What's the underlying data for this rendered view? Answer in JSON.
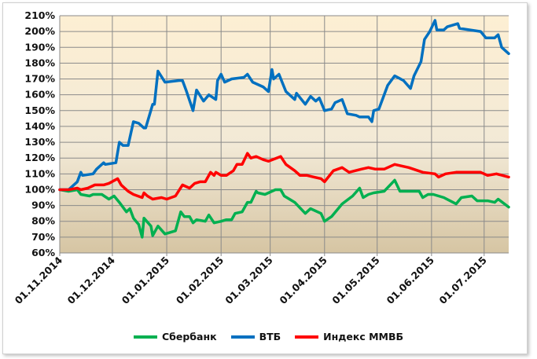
{
  "chart_data": {
    "type": "line",
    "title": "",
    "xlabel": "",
    "ylabel": "",
    "x_unit": "days since 01.11.2014",
    "xlim": [
      0,
      256
    ],
    "ylim": [
      60,
      210
    ],
    "y_ticks": [
      60,
      70,
      80,
      90,
      100,
      110,
      120,
      130,
      140,
      150,
      160,
      170,
      180,
      190,
      200,
      210
    ],
    "y_tick_labels": [
      "60%",
      "70%",
      "80%",
      "90%",
      "100%",
      "110%",
      "120%",
      "130%",
      "140%",
      "150%",
      "160%",
      "170%",
      "180%",
      "190%",
      "200%",
      "210%"
    ],
    "x_ticks": [
      {
        "day": 0,
        "label": "01.11.2014"
      },
      {
        "day": 30,
        "label": "01.12.2014"
      },
      {
        "day": 61,
        "label": "01.01.2015"
      },
      {
        "day": 92,
        "label": "01.02.2015"
      },
      {
        "day": 120,
        "label": "01.03.2015"
      },
      {
        "day": 151,
        "label": "01.04.2015"
      },
      {
        "day": 181,
        "label": "01.05.2015"
      },
      {
        "day": 212,
        "label": "01.06.2015"
      },
      {
        "day": 242,
        "label": "01.07.2015"
      }
    ],
    "grid": true,
    "legend_position": "bottom",
    "series": [
      {
        "name": "Сбербанк",
        "color": "#00b050",
        "points": [
          [
            0,
            100
          ],
          [
            5,
            99
          ],
          [
            10,
            100
          ],
          [
            12,
            97
          ],
          [
            17,
            96
          ],
          [
            19,
            97
          ],
          [
            24,
            97
          ],
          [
            28,
            94
          ],
          [
            31,
            96
          ],
          [
            34,
            92
          ],
          [
            38,
            86
          ],
          [
            40,
            88
          ],
          [
            42,
            82
          ],
          [
            45,
            78
          ],
          [
            47,
            70
          ],
          [
            48,
            82
          ],
          [
            52,
            77
          ],
          [
            53,
            71
          ],
          [
            56,
            77
          ],
          [
            60,
            72
          ],
          [
            66,
            74
          ],
          [
            69,
            86
          ],
          [
            71,
            83
          ],
          [
            74,
            83
          ],
          [
            76,
            79
          ],
          [
            78,
            81
          ],
          [
            83,
            80
          ],
          [
            85,
            84
          ],
          [
            88,
            79
          ],
          [
            92,
            80
          ],
          [
            95,
            81
          ],
          [
            98,
            81
          ],
          [
            100,
            85
          ],
          [
            104,
            86
          ],
          [
            107,
            92
          ],
          [
            109,
            92
          ],
          [
            112,
            99
          ],
          [
            113,
            98
          ],
          [
            117,
            97
          ],
          [
            123,
            100
          ],
          [
            126,
            100
          ],
          [
            128,
            96
          ],
          [
            134,
            92
          ],
          [
            140,
            85
          ],
          [
            143,
            88
          ],
          [
            149,
            85
          ],
          [
            151,
            80
          ],
          [
            155,
            83
          ],
          [
            161,
            91
          ],
          [
            167,
            96
          ],
          [
            171,
            101
          ],
          [
            173,
            95
          ],
          [
            176,
            97
          ],
          [
            179,
            98
          ],
          [
            185,
            99
          ],
          [
            191,
            106
          ],
          [
            194,
            99
          ],
          [
            199,
            99
          ],
          [
            205,
            99
          ],
          [
            207,
            95
          ],
          [
            210,
            97
          ],
          [
            213,
            97
          ],
          [
            219,
            95
          ],
          [
            226,
            91
          ],
          [
            229,
            95
          ],
          [
            235,
            96
          ],
          [
            238,
            93
          ],
          [
            244,
            93
          ],
          [
            248,
            92
          ],
          [
            250,
            94
          ],
          [
            256,
            89
          ]
        ]
      },
      {
        "name": "ВТБ",
        "color": "#0070c0",
        "points": [
          [
            0,
            100
          ],
          [
            5,
            100
          ],
          [
            10,
            105
          ],
          [
            12,
            111
          ],
          [
            13,
            109
          ],
          [
            19,
            110
          ],
          [
            21,
            113
          ],
          [
            25,
            117
          ],
          [
            26,
            116
          ],
          [
            32,
            117
          ],
          [
            34,
            130
          ],
          [
            36,
            128
          ],
          [
            39,
            128
          ],
          [
            42,
            143
          ],
          [
            45,
            142
          ],
          [
            48,
            139
          ],
          [
            49,
            139
          ],
          [
            53,
            154
          ],
          [
            54,
            154
          ],
          [
            56,
            175
          ],
          [
            60,
            168
          ],
          [
            68,
            169
          ],
          [
            70,
            169
          ],
          [
            72,
            163
          ],
          [
            76,
            150
          ],
          [
            78,
            163
          ],
          [
            82,
            156
          ],
          [
            85,
            160
          ],
          [
            89,
            157
          ],
          [
            90,
            169
          ],
          [
            92,
            173
          ],
          [
            94,
            168
          ],
          [
            98,
            170
          ],
          [
            105,
            171
          ],
          [
            107,
            173
          ],
          [
            110,
            168
          ],
          [
            116,
            165
          ],
          [
            119,
            162
          ],
          [
            121,
            176
          ],
          [
            122,
            170
          ],
          [
            125,
            173
          ],
          [
            129,
            162
          ],
          [
            134,
            157
          ],
          [
            135,
            161
          ],
          [
            140,
            154
          ],
          [
            143,
            159
          ],
          [
            146,
            156
          ],
          [
            148,
            158
          ],
          [
            151,
            150
          ],
          [
            155,
            151
          ],
          [
            157,
            155
          ],
          [
            161,
            157
          ],
          [
            164,
            148
          ],
          [
            169,
            147
          ],
          [
            171,
            146
          ],
          [
            176,
            146
          ],
          [
            178,
            143
          ],
          [
            179,
            150
          ],
          [
            182,
            151
          ],
          [
            187,
            166
          ],
          [
            191,
            172
          ],
          [
            196,
            169
          ],
          [
            200,
            164
          ],
          [
            202,
            172
          ],
          [
            206,
            181
          ],
          [
            208,
            195
          ],
          [
            211,
            200
          ],
          [
            214,
            207
          ],
          [
            215,
            201
          ],
          [
            219,
            201
          ],
          [
            221,
            203
          ],
          [
            227,
            205
          ],
          [
            228,
            202
          ],
          [
            234,
            201
          ],
          [
            240,
            200
          ],
          [
            243,
            196
          ],
          [
            248,
            196
          ],
          [
            250,
            198
          ],
          [
            252,
            190
          ],
          [
            256,
            186
          ]
        ]
      },
      {
        "name": "Индекс ММВБ",
        "color": "#ff0000",
        "points": [
          [
            0,
            100
          ],
          [
            5,
            100
          ],
          [
            10,
            101
          ],
          [
            12,
            100
          ],
          [
            16,
            101
          ],
          [
            20,
            103
          ],
          [
            25,
            103
          ],
          [
            28,
            104
          ],
          [
            33,
            107
          ],
          [
            35,
            103
          ],
          [
            39,
            99
          ],
          [
            42,
            97
          ],
          [
            47,
            95
          ],
          [
            48,
            98
          ],
          [
            50,
            96
          ],
          [
            53,
            94
          ],
          [
            58,
            95
          ],
          [
            61,
            94
          ],
          [
            66,
            96
          ],
          [
            70,
            103
          ],
          [
            74,
            101
          ],
          [
            77,
            104
          ],
          [
            80,
            105
          ],
          [
            83,
            105
          ],
          [
            86,
            111
          ],
          [
            88,
            109
          ],
          [
            89,
            111
          ],
          [
            92,
            109
          ],
          [
            95,
            109
          ],
          [
            99,
            112
          ],
          [
            101,
            116
          ],
          [
            104,
            116
          ],
          [
            107,
            123
          ],
          [
            109,
            120
          ],
          [
            112,
            121
          ],
          [
            116,
            119
          ],
          [
            119,
            118
          ],
          [
            126,
            121
          ],
          [
            129,
            116
          ],
          [
            134,
            112
          ],
          [
            137,
            109
          ],
          [
            141,
            109
          ],
          [
            145,
            108
          ],
          [
            149,
            107
          ],
          [
            151,
            105
          ],
          [
            156,
            112
          ],
          [
            161,
            114
          ],
          [
            165,
            111
          ],
          [
            172,
            113
          ],
          [
            176,
            114
          ],
          [
            180,
            113
          ],
          [
            185,
            113
          ],
          [
            191,
            116
          ],
          [
            195,
            115
          ],
          [
            199,
            114
          ],
          [
            207,
            111
          ],
          [
            214,
            110
          ],
          [
            216,
            108
          ],
          [
            220,
            110
          ],
          [
            226,
            111
          ],
          [
            234,
            111
          ],
          [
            240,
            111
          ],
          [
            244,
            109
          ],
          [
            249,
            110
          ],
          [
            256,
            108
          ]
        ]
      }
    ]
  }
}
